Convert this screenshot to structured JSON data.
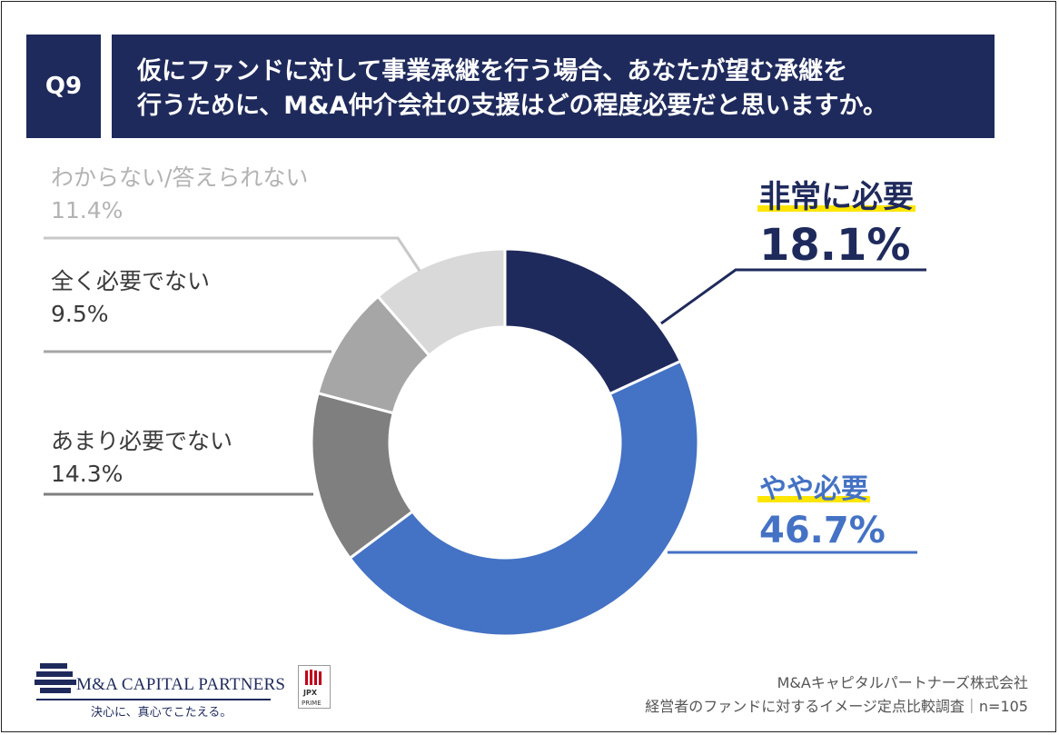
{
  "question": {
    "number": "Q9",
    "line1": "仮にファンドに対して事業承継を行う場合、あなたが望む承継を",
    "line2": "行うために、M&A仲介会社の支援はどの程度必要だと思いますか。"
  },
  "chart_data": {
    "type": "pie",
    "donut": true,
    "slices": [
      {
        "label": "非常に必要",
        "value": 18.1,
        "value_text": "18.1%",
        "color": "#1f2a5c"
      },
      {
        "label": "やや必要",
        "value": 46.7,
        "value_text": "46.7%",
        "color": "#4472c4"
      },
      {
        "label": "あまり必要でない",
        "value": 14.3,
        "value_text": "14.3%",
        "color": "#7f7f7f"
      },
      {
        "label": "全く必要でない",
        "value": 9.5,
        "value_text": "9.5%",
        "color": "#a6a6a6"
      },
      {
        "label": "わからない/答えられない",
        "value": 11.4,
        "value_text": "11.4%",
        "color": "#d9d9d9"
      }
    ],
    "highlight_color": "#ffe600"
  },
  "footer": {
    "brand_name": "M&A CAPITAL PARTNERS",
    "tagline": "決心に、真心でこたえる。",
    "jpx_line1": "JPX",
    "jpx_line2": "PRIME",
    "source_line1": "M&Aキャピタルパートナーズ株式会社",
    "source_line2": "経営者のファンドに対するイメージ定点比較調査｜n=105"
  }
}
